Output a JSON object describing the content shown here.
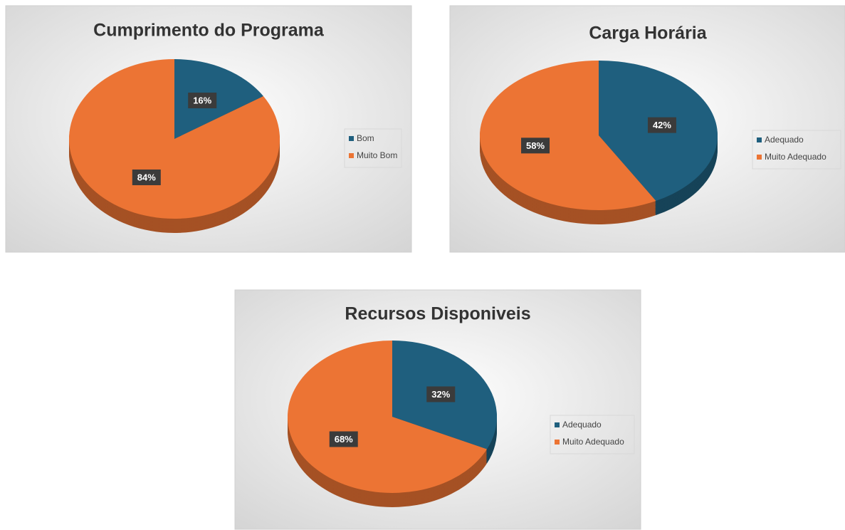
{
  "chart_data": [
    {
      "type": "pie",
      "title": "Cumprimento do Programa",
      "categories": [
        "Bom",
        "Muito Bom"
      ],
      "values": [
        16,
        84
      ],
      "value_labels": [
        "16%",
        "84%"
      ],
      "colors": [
        "#1f5f7e",
        "#ec7434"
      ]
    },
    {
      "type": "pie",
      "title": "Carga Horária",
      "categories": [
        "Adequado",
        "Muito Adequado"
      ],
      "values": [
        42,
        58
      ],
      "value_labels": [
        "42%",
        "58%"
      ],
      "colors": [
        "#1f5f7e",
        "#ec7434"
      ]
    },
    {
      "type": "pie",
      "title": "Recursos Disponiveis",
      "categories": [
        "Adequado",
        "Muito Adequado"
      ],
      "values": [
        32,
        68
      ],
      "value_labels": [
        "32%",
        "68%"
      ],
      "colors": [
        "#1f5f7e",
        "#ec7434"
      ]
    }
  ]
}
